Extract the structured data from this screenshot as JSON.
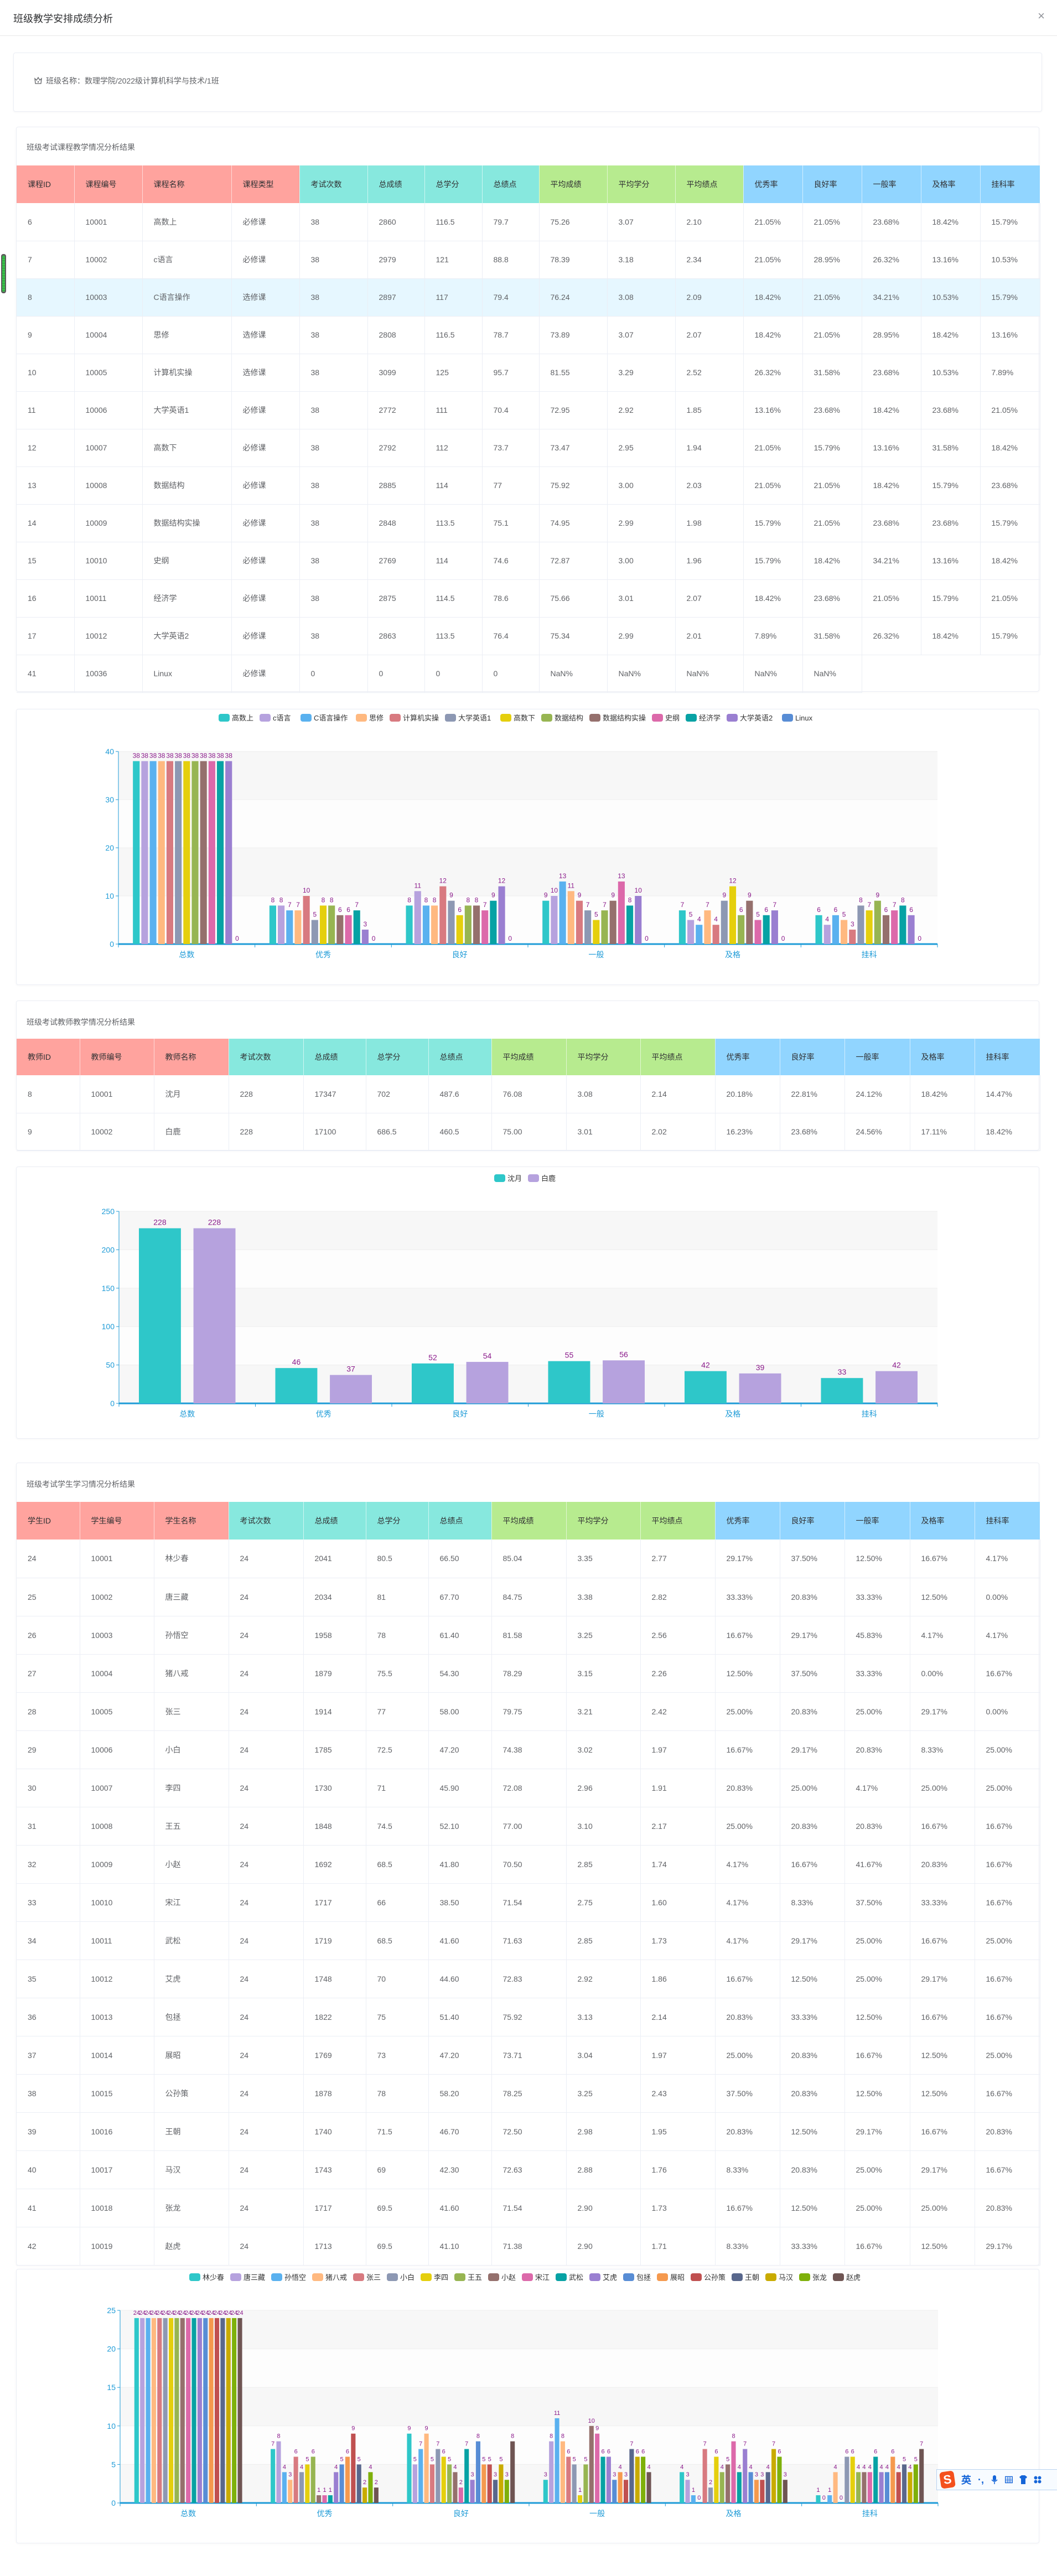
{
  "header": {
    "title": "班级教学安排成绩分析",
    "close_label": "×"
  },
  "class_info": {
    "label": "班级名称：数理学院/2022级计算机科学与技术/1班"
  },
  "course_table": {
    "title": "班级考试课程教学情况分析结果",
    "columns": [
      "课程ID",
      "课程编号",
      "课程名称",
      "课程类型",
      "考试次数",
      "总成绩",
      "总学分",
      "总绩点",
      "平均成绩",
      "平均学分",
      "平均绩点",
      "优秀率",
      "良好率",
      "一般率",
      "及格率",
      "挂科率"
    ],
    "groups": [
      "red",
      "red",
      "red",
      "red",
      "teal",
      "teal",
      "teal",
      "teal",
      "green",
      "green",
      "green",
      "blue",
      "blue",
      "blue",
      "blue",
      "blue"
    ],
    "highlight_row": 2,
    "rows": [
      [
        "6",
        "10001",
        "高数上",
        "必修课",
        "38",
        "2860",
        "116.5",
        "79.7",
        "75.26",
        "3.07",
        "2.10",
        "21.05%",
        "21.05%",
        "23.68%",
        "18.42%",
        "15.79%"
      ],
      [
        "7",
        "10002",
        "c语言",
        "必修课",
        "38",
        "2979",
        "121",
        "88.8",
        "78.39",
        "3.18",
        "2.34",
        "21.05%",
        "28.95%",
        "26.32%",
        "13.16%",
        "10.53%"
      ],
      [
        "8",
        "10003",
        "C语言操作",
        "选修课",
        "38",
        "2897",
        "117",
        "79.4",
        "76.24",
        "3.08",
        "2.09",
        "18.42%",
        "21.05%",
        "34.21%",
        "10.53%",
        "15.79%"
      ],
      [
        "9",
        "10004",
        "思修",
        "选修课",
        "38",
        "2808",
        "116.5",
        "78.7",
        "73.89",
        "3.07",
        "2.07",
        "18.42%",
        "21.05%",
        "28.95%",
        "18.42%",
        "13.16%"
      ],
      [
        "10",
        "10005",
        "计算机实操",
        "选修课",
        "38",
        "3099",
        "125",
        "95.7",
        "81.55",
        "3.29",
        "2.52",
        "26.32%",
        "31.58%",
        "23.68%",
        "10.53%",
        "7.89%"
      ],
      [
        "11",
        "10006",
        "大学英语1",
        "必修课",
        "38",
        "2772",
        "111",
        "70.4",
        "72.95",
        "2.92",
        "1.85",
        "13.16%",
        "23.68%",
        "18.42%",
        "23.68%",
        "21.05%"
      ],
      [
        "12",
        "10007",
        "高数下",
        "必修课",
        "38",
        "2792",
        "112",
        "73.7",
        "73.47",
        "2.95",
        "1.94",
        "21.05%",
        "15.79%",
        "13.16%",
        "31.58%",
        "18.42%"
      ],
      [
        "13",
        "10008",
        "数据结构",
        "必修课",
        "38",
        "2885",
        "114",
        "77",
        "75.92",
        "3.00",
        "2.03",
        "21.05%",
        "21.05%",
        "18.42%",
        "15.79%",
        "23.68%"
      ],
      [
        "14",
        "10009",
        "数据结构实操",
        "必修课",
        "38",
        "2848",
        "113.5",
        "75.1",
        "74.95",
        "2.99",
        "1.98",
        "15.79%",
        "21.05%",
        "23.68%",
        "23.68%",
        "15.79%"
      ],
      [
        "15",
        "10010",
        "史纲",
        "必修课",
        "38",
        "2769",
        "114",
        "74.6",
        "72.87",
        "3.00",
        "1.96",
        "15.79%",
        "18.42%",
        "34.21%",
        "13.16%",
        "18.42%"
      ],
      [
        "16",
        "10011",
        "经济学",
        "必修课",
        "38",
        "2875",
        "114.5",
        "78.6",
        "75.66",
        "3.01",
        "2.07",
        "18.42%",
        "23.68%",
        "21.05%",
        "15.79%",
        "21.05%"
      ],
      [
        "17",
        "10012",
        "大学英语2",
        "必修课",
        "38",
        "2863",
        "113.5",
        "76.4",
        "75.34",
        "2.99",
        "2.01",
        "7.89%",
        "31.58%",
        "26.32%",
        "18.42%",
        "15.79%"
      ],
      [
        "41",
        "10036",
        "Linux",
        "必修课",
        "0",
        "0",
        "0",
        "0",
        "NaN%",
        "NaN%",
        "NaN%",
        "NaN%",
        "NaN%",
        null,
        null,
        null
      ]
    ]
  },
  "teacher_table": {
    "title": "班级考试教师教学情况分析结果",
    "columns": [
      "教师ID",
      "教师编号",
      "教师名称",
      "考试次数",
      "总成绩",
      "总学分",
      "总绩点",
      "平均成绩",
      "平均学分",
      "平均绩点",
      "优秀率",
      "良好率",
      "一般率",
      "及格率",
      "挂科率"
    ],
    "groups": [
      "red",
      "red",
      "red",
      "teal",
      "teal",
      "teal",
      "teal",
      "green",
      "green",
      "green",
      "blue",
      "blue",
      "blue",
      "blue",
      "blue"
    ],
    "rows": [
      [
        "8",
        "10001",
        "沈月",
        "228",
        "17347",
        "702",
        "487.6",
        "76.08",
        "3.08",
        "2.14",
        "20.18%",
        "22.81%",
        "24.12%",
        "18.42%",
        "14.47%"
      ],
      [
        "9",
        "10002",
        "白鹿",
        "228",
        "17100",
        "686.5",
        "460.5",
        "75.00",
        "3.01",
        "2.02",
        "16.23%",
        "23.68%",
        "24.56%",
        "17.11%",
        "18.42%"
      ]
    ]
  },
  "student_table": {
    "title": "班级考试学生学习情况分析结果",
    "columns": [
      "学生ID",
      "学生编号",
      "学生名称",
      "考试次数",
      "总成绩",
      "总学分",
      "总绩点",
      "平均成绩",
      "平均学分",
      "平均绩点",
      "优秀率",
      "良好率",
      "一般率",
      "及格率",
      "挂科率"
    ],
    "groups": [
      "red",
      "red",
      "red",
      "teal",
      "teal",
      "teal",
      "teal",
      "green",
      "green",
      "green",
      "blue",
      "blue",
      "blue",
      "blue",
      "blue"
    ],
    "rows": [
      [
        "24",
        "10001",
        "林少春",
        "24",
        "2041",
        "80.5",
        "66.50",
        "85.04",
        "3.35",
        "2.77",
        "29.17%",
        "37.50%",
        "12.50%",
        "16.67%",
        "4.17%"
      ],
      [
        "25",
        "10002",
        "唐三藏",
        "24",
        "2034",
        "81",
        "67.70",
        "84.75",
        "3.38",
        "2.82",
        "33.33%",
        "20.83%",
        "33.33%",
        "12.50%",
        "0.00%"
      ],
      [
        "26",
        "10003",
        "孙悟空",
        "24",
        "1958",
        "78",
        "61.40",
        "81.58",
        "3.25",
        "2.56",
        "16.67%",
        "29.17%",
        "45.83%",
        "4.17%",
        "4.17%"
      ],
      [
        "27",
        "10004",
        "猪八戒",
        "24",
        "1879",
        "75.5",
        "54.30",
        "78.29",
        "3.15",
        "2.26",
        "12.50%",
        "37.50%",
        "33.33%",
        "0.00%",
        "16.67%"
      ],
      [
        "28",
        "10005",
        "张三",
        "24",
        "1914",
        "77",
        "58.00",
        "79.75",
        "3.21",
        "2.42",
        "25.00%",
        "20.83%",
        "25.00%",
        "29.17%",
        "0.00%"
      ],
      [
        "29",
        "10006",
        "小白",
        "24",
        "1785",
        "72.5",
        "47.20",
        "74.38",
        "3.02",
        "1.97",
        "16.67%",
        "29.17%",
        "20.83%",
        "8.33%",
        "25.00%"
      ],
      [
        "30",
        "10007",
        "李四",
        "24",
        "1730",
        "71",
        "45.90",
        "72.08",
        "2.96",
        "1.91",
        "20.83%",
        "25.00%",
        "4.17%",
        "25.00%",
        "25.00%"
      ],
      [
        "31",
        "10008",
        "王五",
        "24",
        "1848",
        "74.5",
        "52.10",
        "77.00",
        "3.10",
        "2.17",
        "25.00%",
        "20.83%",
        "20.83%",
        "16.67%",
        "16.67%"
      ],
      [
        "32",
        "10009",
        "小赵",
        "24",
        "1692",
        "68.5",
        "41.80",
        "70.50",
        "2.85",
        "1.74",
        "4.17%",
        "16.67%",
        "41.67%",
        "20.83%",
        "16.67%"
      ],
      [
        "33",
        "10010",
        "宋江",
        "24",
        "1717",
        "66",
        "38.50",
        "71.54",
        "2.75",
        "1.60",
        "4.17%",
        "8.33%",
        "37.50%",
        "33.33%",
        "16.67%"
      ],
      [
        "34",
        "10011",
        "武松",
        "24",
        "1719",
        "68.5",
        "41.60",
        "71.63",
        "2.85",
        "1.73",
        "4.17%",
        "29.17%",
        "25.00%",
        "16.67%",
        "25.00%"
      ],
      [
        "35",
        "10012",
        "艾虎",
        "24",
        "1748",
        "70",
        "44.60",
        "72.83",
        "2.92",
        "1.86",
        "16.67%",
        "12.50%",
        "25.00%",
        "29.17%",
        "16.67%"
      ],
      [
        "36",
        "10013",
        "包拯",
        "24",
        "1822",
        "75",
        "51.40",
        "75.92",
        "3.13",
        "2.14",
        "20.83%",
        "33.33%",
        "12.50%",
        "16.67%",
        "16.67%"
      ],
      [
        "37",
        "10014",
        "展昭",
        "24",
        "1769",
        "73",
        "47.20",
        "73.71",
        "3.04",
        "1.97",
        "25.00%",
        "20.83%",
        "16.67%",
        "12.50%",
        "25.00%"
      ],
      [
        "38",
        "10015",
        "公孙策",
        "24",
        "1878",
        "78",
        "58.20",
        "78.25",
        "3.25",
        "2.43",
        "37.50%",
        "20.83%",
        "12.50%",
        "12.50%",
        "16.67%"
      ],
      [
        "39",
        "10016",
        "王朝",
        "24",
        "1740",
        "71.5",
        "46.70",
        "72.50",
        "2.98",
        "1.95",
        "20.83%",
        "12.50%",
        "29.17%",
        "16.67%",
        "20.83%"
      ],
      [
        "40",
        "10017",
        "马汉",
        "24",
        "1743",
        "69",
        "42.30",
        "72.63",
        "2.88",
        "1.76",
        "8.33%",
        "20.83%",
        "25.00%",
        "29.17%",
        "16.67%"
      ],
      [
        "41",
        "10018",
        "张龙",
        "24",
        "1717",
        "69.5",
        "41.60",
        "71.54",
        "2.90",
        "1.73",
        "16.67%",
        "12.50%",
        "25.00%",
        "25.00%",
        "20.83%"
      ],
      [
        "42",
        "10019",
        "赵虎",
        "24",
        "1713",
        "69.5",
        "41.10",
        "71.38",
        "2.90",
        "1.71",
        "8.33%",
        "33.33%",
        "16.67%",
        "12.50%",
        "29.17%"
      ]
    ]
  },
  "colors": {
    "palette": [
      "#2ec7c9",
      "#b6a2de",
      "#5ab1ef",
      "#ffb980",
      "#d87a80",
      "#8d98b3",
      "#e5cf0d",
      "#97b552",
      "#95706d",
      "#dc69aa",
      "#07a2a4",
      "#9a7fd1",
      "#588dd5",
      "#f5994e",
      "#c05050",
      "#59678c",
      "#c9ab00",
      "#7eb00a",
      "#6f5553"
    ],
    "axis": "#1e9bd7",
    "label": "#8b1a8b"
  },
  "chart_data": [
    {
      "type": "bar",
      "title": "",
      "categories": [
        "总数",
        "优秀",
        "良好",
        "一般",
        "及格",
        "挂科"
      ],
      "ylim": [
        0,
        40
      ],
      "yticks": [
        0,
        10,
        20,
        30,
        40
      ],
      "legend": "top-center",
      "series": [
        {
          "name": "高数上",
          "values": [
            38,
            8,
            8,
            9,
            7,
            6
          ]
        },
        {
          "name": "c语言",
          "values": [
            38,
            8,
            11,
            10,
            5,
            4
          ]
        },
        {
          "name": "C语言操作",
          "values": [
            38,
            7,
            8,
            13,
            4,
            6
          ]
        },
        {
          "name": "思修",
          "values": [
            38,
            7,
            8,
            11,
            7,
            5
          ]
        },
        {
          "name": "计算机实操",
          "values": [
            38,
            10,
            12,
            9,
            4,
            3
          ]
        },
        {
          "name": "大学英语1",
          "values": [
            38,
            5,
            9,
            7,
            9,
            8
          ]
        },
        {
          "name": "高数下",
          "values": [
            38,
            8,
            6,
            5,
            12,
            7
          ]
        },
        {
          "name": "数据结构",
          "values": [
            38,
            8,
            8,
            7,
            6,
            9
          ]
        },
        {
          "name": "数据结构实操",
          "values": [
            38,
            6,
            8,
            9,
            9,
            6
          ]
        },
        {
          "name": "史纲",
          "values": [
            38,
            6,
            7,
            13,
            5,
            7
          ]
        },
        {
          "name": "经济学",
          "values": [
            38,
            7,
            9,
            8,
            6,
            8
          ]
        },
        {
          "name": "大学英语2",
          "values": [
            38,
            3,
            12,
            10,
            7,
            6
          ]
        },
        {
          "name": "Linux",
          "values": [
            0,
            0,
            0,
            0,
            0,
            0
          ]
        }
      ]
    },
    {
      "type": "bar",
      "title": "",
      "categories": [
        "总数",
        "优秀",
        "良好",
        "一般",
        "及格",
        "挂科"
      ],
      "ylim": [
        0,
        250
      ],
      "yticks": [
        0,
        50,
        100,
        150,
        200,
        250
      ],
      "legend": "top-center",
      "series": [
        {
          "name": "沈月",
          "values": [
            228,
            46,
            52,
            55,
            42,
            33
          ]
        },
        {
          "name": "白鹿",
          "values": [
            228,
            37,
            54,
            56,
            39,
            42
          ]
        }
      ]
    },
    {
      "type": "bar",
      "title": "",
      "categories": [
        "总数",
        "优秀",
        "良好",
        "一般",
        "及格",
        "挂科"
      ],
      "ylim": [
        0,
        25
      ],
      "yticks": [
        0,
        5,
        10,
        15,
        20,
        25
      ],
      "legend": "top-center",
      "series": [
        {
          "name": "林少春",
          "values": [
            24,
            7,
            9,
            3,
            4,
            1
          ]
        },
        {
          "name": "唐三藏",
          "values": [
            24,
            8,
            5,
            8,
            3,
            0
          ]
        },
        {
          "name": "孙悟空",
          "values": [
            24,
            4,
            7,
            11,
            1,
            1
          ]
        },
        {
          "name": "猪八戒",
          "values": [
            24,
            3,
            9,
            8,
            0,
            4
          ]
        },
        {
          "name": "张三",
          "values": [
            24,
            6,
            5,
            6,
            7,
            0
          ]
        },
        {
          "name": "小白",
          "values": [
            24,
            4,
            7,
            5,
            2,
            6
          ]
        },
        {
          "name": "李四",
          "values": [
            24,
            5,
            6,
            1,
            6,
            6
          ]
        },
        {
          "name": "王五",
          "values": [
            24,
            6,
            5,
            5,
            4,
            4
          ]
        },
        {
          "name": "小赵",
          "values": [
            24,
            1,
            4,
            10,
            5,
            4
          ]
        },
        {
          "name": "宋江",
          "values": [
            24,
            1,
            2,
            9,
            8,
            4
          ]
        },
        {
          "name": "武松",
          "values": [
            24,
            1,
            7,
            6,
            4,
            6
          ]
        },
        {
          "name": "艾虎",
          "values": [
            24,
            4,
            3,
            6,
            7,
            4
          ]
        },
        {
          "name": "包拯",
          "values": [
            24,
            5,
            8,
            3,
            4,
            4
          ]
        },
        {
          "name": "展昭",
          "values": [
            24,
            6,
            5,
            4,
            3,
            6
          ]
        },
        {
          "name": "公孙策",
          "values": [
            24,
            9,
            5,
            3,
            3,
            4
          ]
        },
        {
          "name": "王朝",
          "values": [
            24,
            5,
            3,
            7,
            4,
            5
          ]
        },
        {
          "name": "马汉",
          "values": [
            24,
            2,
            5,
            6,
            7,
            4
          ]
        },
        {
          "name": "张龙",
          "values": [
            24,
            4,
            3,
            6,
            6,
            5
          ]
        },
        {
          "name": "赵虎",
          "values": [
            24,
            2,
            8,
            4,
            3,
            7
          ]
        }
      ]
    }
  ],
  "ime_toolbar": {
    "lang_label": "英",
    "punct_label": "·,"
  }
}
